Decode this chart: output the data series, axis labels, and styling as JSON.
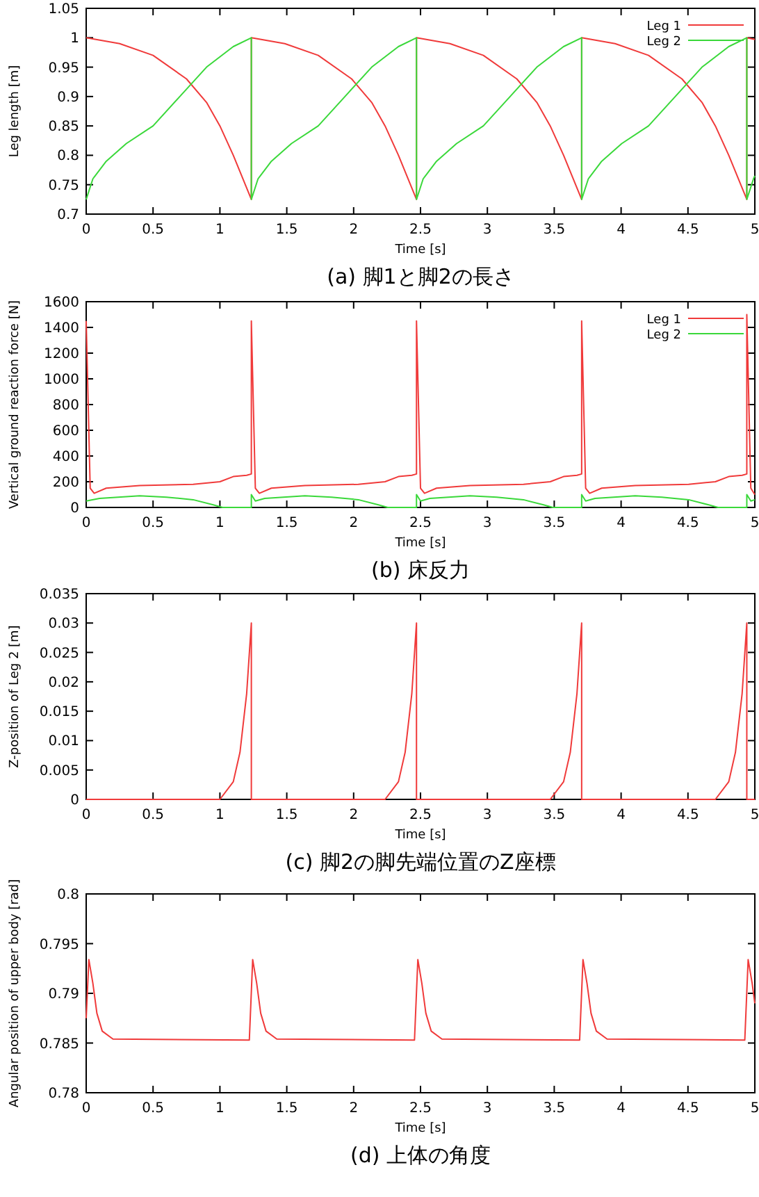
{
  "chart_data": [
    {
      "type": "line",
      "title": "(a) 脚1と脚2の長さ",
      "xlabel": "Time [s]",
      "ylabel": "Leg length [m]",
      "xlim": [
        0,
        5
      ],
      "xticks": [
        0,
        0.5,
        1,
        1.5,
        2,
        2.5,
        3,
        3.5,
        4,
        4.5,
        5
      ],
      "ylim": [
        0.7,
        1.05
      ],
      "yticks": [
        0.7,
        0.75,
        0.8,
        0.85,
        0.9,
        0.95,
        1,
        1.05
      ],
      "legend": "top right",
      "grid": false,
      "line_style": "solid",
      "marker": "none",
      "series": [
        {
          "name": "Leg 1",
          "color": "#f03a3a",
          "x": [
            0,
            0.25,
            0.5,
            0.75,
            0.9,
            1.0,
            1.1,
            1.235,
            1.235,
            1.485,
            1.735,
            1.985,
            2.135,
            2.235,
            2.335,
            2.47,
            2.47,
            2.72,
            2.97,
            3.22,
            3.37,
            3.47,
            3.57,
            3.705,
            3.705,
            3.955,
            4.205,
            4.455,
            4.605,
            4.705,
            4.805,
            4.94,
            4.94,
            5.0
          ],
          "values": [
            1,
            0.99,
            0.97,
            0.93,
            0.89,
            0.85,
            0.8,
            0.725,
            1,
            0.99,
            0.97,
            0.93,
            0.89,
            0.85,
            0.8,
            0.725,
            1,
            0.99,
            0.97,
            0.93,
            0.89,
            0.85,
            0.8,
            0.725,
            1,
            0.99,
            0.97,
            0.93,
            0.89,
            0.85,
            0.8,
            0.725,
            1,
            0.997
          ]
        },
        {
          "name": "Leg 2",
          "color": "#3ad83a",
          "x": [
            0,
            0.05,
            0.15,
            0.3,
            0.5,
            0.7,
            0.9,
            1.1,
            1.235,
            1.235,
            1.285,
            1.385,
            1.535,
            1.735,
            1.935,
            2.135,
            2.335,
            2.47,
            2.47,
            2.52,
            2.62,
            2.77,
            2.97,
            3.17,
            3.37,
            3.57,
            3.705,
            3.705,
            3.755,
            3.855,
            4.005,
            4.205,
            4.405,
            4.605,
            4.805,
            4.94,
            4.94,
            4.99,
            5.0
          ],
          "values": [
            0.725,
            0.76,
            0.79,
            0.82,
            0.85,
            0.9,
            0.95,
            0.985,
            1,
            0.725,
            0.76,
            0.79,
            0.82,
            0.85,
            0.9,
            0.95,
            0.985,
            1,
            0.725,
            0.76,
            0.79,
            0.82,
            0.85,
            0.9,
            0.95,
            0.985,
            1,
            0.725,
            0.76,
            0.79,
            0.82,
            0.85,
            0.9,
            0.95,
            0.985,
            1,
            0.725,
            0.76,
            0.765
          ]
        }
      ]
    },
    {
      "type": "line",
      "title": "(b) 床反力",
      "xlabel": "Time [s]",
      "ylabel": "Vertical ground reaction force [N]",
      "xlim": [
        0,
        5
      ],
      "xticks": [
        0,
        0.5,
        1,
        1.5,
        2,
        2.5,
        3,
        3.5,
        4,
        4.5,
        5
      ],
      "ylim": [
        0,
        1600
      ],
      "yticks": [
        0,
        200,
        400,
        600,
        800,
        1000,
        1200,
        1400,
        1600
      ],
      "legend": "top right",
      "grid": false,
      "line_style": "solid",
      "marker": "none",
      "series": [
        {
          "name": "Leg 1",
          "color": "#f03a3a",
          "x": [
            0,
            0.03,
            0.06,
            0.15,
            0.4,
            0.8,
            1.0,
            1.1,
            1.2,
            1.235,
            1.235,
            1.265,
            1.295,
            1.385,
            1.635,
            2.035,
            2.235,
            2.335,
            2.435,
            2.47,
            2.47,
            2.5,
            2.53,
            2.62,
            2.87,
            3.27,
            3.47,
            3.57,
            3.67,
            3.705,
            3.705,
            3.735,
            3.765,
            3.855,
            4.105,
            4.505,
            4.705,
            4.805,
            4.905,
            4.94,
            4.94,
            4.97,
            5.0
          ],
          "values": [
            1450,
            150,
            110,
            150,
            170,
            180,
            200,
            240,
            250,
            260,
            1450,
            150,
            110,
            150,
            170,
            180,
            200,
            240,
            250,
            260,
            1450,
            150,
            110,
            150,
            170,
            180,
            200,
            240,
            250,
            260,
            1450,
            150,
            110,
            150,
            170,
            180,
            200,
            240,
            250,
            260,
            1500,
            150,
            100
          ]
        },
        {
          "name": "Leg 2",
          "color": "#3ad83a",
          "x": [
            0,
            0.1,
            0.4,
            0.6,
            0.8,
            0.95,
            1.02,
            1.235,
            1.235,
            1.265,
            1.335,
            1.635,
            1.835,
            2.035,
            2.185,
            2.255,
            2.47,
            2.47,
            2.5,
            2.57,
            2.87,
            3.07,
            3.27,
            3.42,
            3.49,
            3.705,
            3.705,
            3.735,
            3.805,
            4.105,
            4.305,
            4.505,
            4.655,
            4.725,
            4.94,
            4.94,
            4.97,
            5.0
          ],
          "values": [
            50,
            70,
            90,
            80,
            60,
            20,
            0,
            0,
            100,
            50,
            70,
            90,
            80,
            60,
            20,
            0,
            0,
            100,
            50,
            70,
            90,
            80,
            60,
            20,
            0,
            0,
            100,
            50,
            70,
            90,
            80,
            60,
            20,
            0,
            0,
            100,
            50,
            60
          ]
        }
      ]
    },
    {
      "type": "line",
      "title": "(c) 脚2の脚先端位置のZ座標",
      "xlabel": "Time [s]",
      "ylabel": "Z-position of Leg 2 [m]",
      "xlim": [
        0,
        5
      ],
      "xticks": [
        0,
        0.5,
        1,
        1.5,
        2,
        2.5,
        3,
        3.5,
        4,
        4.5,
        5
      ],
      "ylim": [
        0,
        0.035
      ],
      "yticks": [
        0,
        0.005,
        0.01,
        0.015,
        0.02,
        0.025,
        0.03,
        0.035
      ],
      "legend": false,
      "grid": false,
      "line_style": "solid",
      "marker": "none",
      "series": [
        {
          "color": "#f03a3a",
          "x": [
            0,
            1.0,
            1.1,
            1.15,
            1.2,
            1.235,
            1.235,
            2.235,
            2.335,
            2.385,
            2.435,
            2.47,
            2.47,
            3.47,
            3.57,
            3.62,
            3.67,
            3.705,
            3.705,
            4.705,
            4.805,
            4.855,
            4.905,
            4.94,
            4.94,
            5.0
          ],
          "values": [
            0,
            0,
            0.003,
            0.008,
            0.018,
            0.03,
            0,
            0,
            0.003,
            0.008,
            0.018,
            0.03,
            0,
            0,
            0.003,
            0.008,
            0.018,
            0.03,
            0,
            0,
            0.003,
            0.008,
            0.018,
            0.03,
            0,
            0
          ]
        }
      ]
    },
    {
      "type": "line",
      "title": "(d) 上体の角度",
      "xlabel": "Time [s]",
      "ylabel": "Angular position of upper body [rad]",
      "xlim": [
        0,
        5
      ],
      "xticks": [
        0,
        0.5,
        1,
        1.5,
        2,
        2.5,
        3,
        3.5,
        4,
        4.5,
        5
      ],
      "ylim": [
        0.78,
        0.8
      ],
      "yticks": [
        0.78,
        0.785,
        0.79,
        0.795,
        0.8
      ],
      "legend": false,
      "grid": false,
      "line_style": "solid",
      "marker": "none",
      "series": [
        {
          "color": "#f03a3a",
          "x": [
            0,
            0.02,
            0.05,
            0.08,
            0.12,
            0.2,
            1.22,
            1.245,
            1.275,
            1.305,
            1.345,
            1.425,
            2.455,
            2.48,
            2.51,
            2.54,
            2.58,
            2.66,
            3.69,
            3.715,
            3.745,
            3.775,
            3.815,
            3.895,
            4.925,
            4.95,
            4.98,
            5.0
          ],
          "values": [
            0.7875,
            0.7934,
            0.791,
            0.788,
            0.7862,
            0.7854,
            0.7853,
            0.7934,
            0.791,
            0.788,
            0.7862,
            0.7854,
            0.7853,
            0.7934,
            0.791,
            0.788,
            0.7862,
            0.7854,
            0.7853,
            0.7934,
            0.791,
            0.788,
            0.7862,
            0.7854,
            0.7853,
            0.7934,
            0.791,
            0.789
          ]
        }
      ]
    }
  ]
}
